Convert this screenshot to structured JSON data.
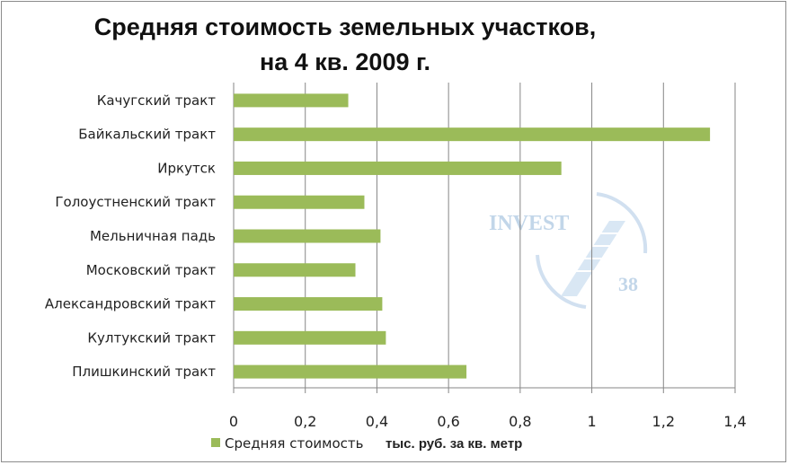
{
  "chart_data": {
    "type": "bar",
    "orientation": "horizontal",
    "title": "Средняя стоимость земельных участков, на 4 кв. 2009 г.",
    "title_lines": [
      "Средняя стоимость земельных участков,",
      "на 4 кв. 2009 г."
    ],
    "categories": [
      "Качугский тракт",
      "Байкальский тракт",
      "Иркутск",
      "Голоустненский тракт",
      "Мельничная падь",
      "Московский тракт",
      "Александровский тракт",
      "Култукский тракт",
      "Плишкинский тракт"
    ],
    "series": [
      {
        "name": "Средняя стоимость",
        "values": [
          0.32,
          1.33,
          0.915,
          0.365,
          0.41,
          0.34,
          0.415,
          0.425,
          0.65
        ],
        "color": "#9bbb59"
      }
    ],
    "xlim": [
      0,
      1.4
    ],
    "x_ticks": [
      "0",
      "0,2",
      "0,4",
      "0,6",
      "0,8",
      "1",
      "1,2",
      "1,4"
    ],
    "unit_label": "тыс. руб. за кв. метр",
    "grid": "vertical",
    "gridline_color": "#868686",
    "legend_position": "bottom"
  },
  "watermark": {
    "text": "INVEST",
    "number": "38",
    "color": "#b8cfe6"
  }
}
